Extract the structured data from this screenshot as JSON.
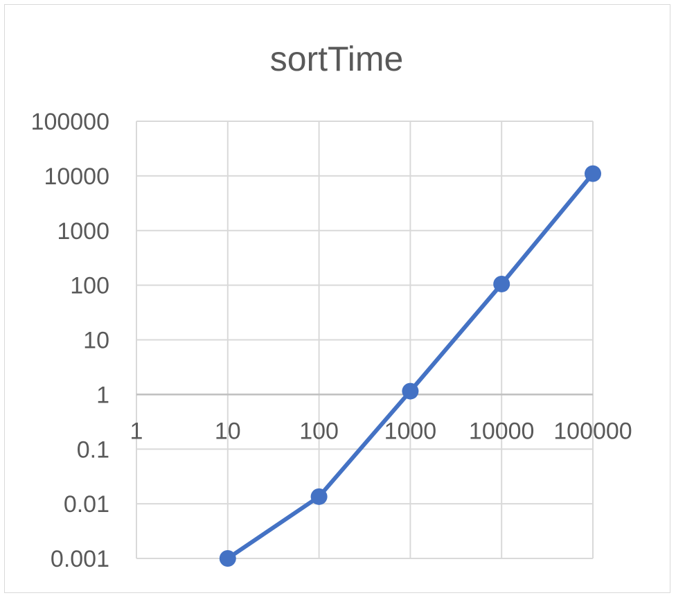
{
  "chart_data": {
    "type": "line",
    "title": "sortTime",
    "xlabel": "",
    "ylabel": "",
    "x_scale": "log",
    "y_scale": "log",
    "xlim": [
      1,
      100000
    ],
    "ylim": [
      0.001,
      100000
    ],
    "x_ticks": [
      "1",
      "10",
      "100",
      "1000",
      "10000",
      "100000"
    ],
    "y_ticks": [
      "100000",
      "10000",
      "1000",
      "100",
      "10",
      "1",
      "0.1",
      "0.01",
      "0.001"
    ],
    "grid": true,
    "legend": "none",
    "series": [
      {
        "color": "#4472C4",
        "x": [
          10,
          100,
          1000,
          10000,
          100000
        ],
        "y": [
          0.001,
          0.0135,
          1.15,
          105,
          11000
        ]
      }
    ]
  }
}
